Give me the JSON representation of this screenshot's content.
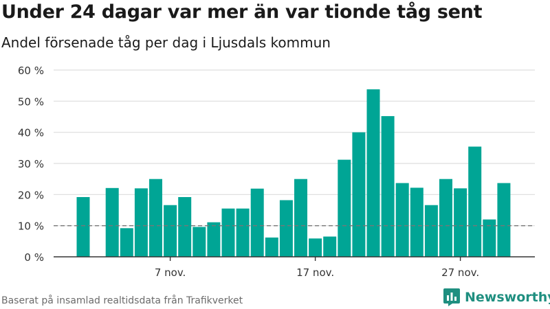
{
  "title": "Under 24 dagar var mer än var tionde tåg sent",
  "subtitle": "Andel försenade tåg per dag i Ljusdals kommun",
  "source": "Baserat på insamlad realtidsdata från Trafikverket",
  "brand": {
    "name": "Newsworthy",
    "logo_icon": "bar-chart-logo-icon"
  },
  "colors": {
    "bar": "#00a595",
    "reference_line": "#777777",
    "grid": "#dddddd",
    "axis": "#333333",
    "brand": "#1f8f80"
  },
  "chart_data": {
    "type": "bar",
    "unit": "%",
    "ylim": [
      0,
      60
    ],
    "yticks": [
      0,
      10,
      20,
      30,
      40,
      50,
      60
    ],
    "ytick_labels": [
      "0 %",
      "10 %",
      "20 %",
      "30 %",
      "40 %",
      "50 %",
      "60 %"
    ],
    "xtick_labels": [
      {
        "label": "7 nov.",
        "day": 7
      },
      {
        "label": "17 nov.",
        "day": 17
      },
      {
        "label": "27 nov.",
        "day": 27
      }
    ],
    "x": [
      1,
      2,
      3,
      4,
      5,
      6,
      7,
      8,
      9,
      10,
      11,
      12,
      13,
      14,
      15,
      16,
      17,
      18,
      19,
      20,
      21,
      22,
      23,
      24,
      25,
      26,
      27,
      28,
      29,
      30
    ],
    "values": [
      19.2,
      null,
      22.1,
      9.2,
      22.0,
      25.0,
      16.6,
      19.2,
      9.6,
      11.1,
      15.5,
      15.5,
      21.9,
      6.2,
      18.2,
      25.0,
      5.9,
      6.5,
      31.2,
      40.0,
      53.8,
      45.2,
      23.7,
      22.2,
      16.6,
      25.0,
      22.0,
      35.4,
      12.0,
      23.7
    ],
    "reference_line": {
      "value": 10,
      "style": "dashed"
    },
    "grid": true,
    "legend": "none"
  }
}
